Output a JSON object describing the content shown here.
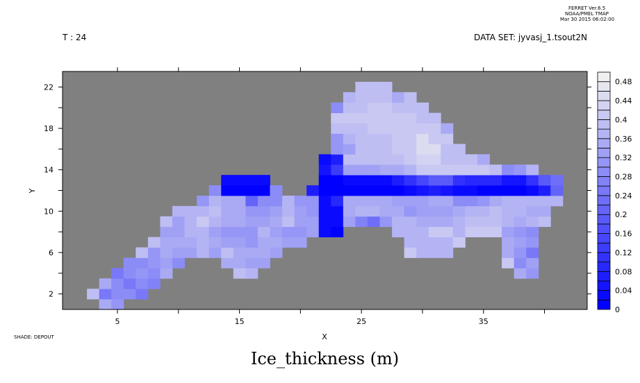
{
  "header": {
    "time_label": "T : 24",
    "dataset_label": "DATA SET: jyvasj_1.tsout2N",
    "ferret_lines": [
      "FERRET  Ver.6.5",
      "NOAA/PMEL TMAP",
      "Mar 30 2015 06:02:00"
    ]
  },
  "footer": {
    "shade_label": "SHADE: DEPOUT",
    "title": "Ice_thickness (m)"
  },
  "chart_data": {
    "type": "heatmap",
    "title": "Ice_thickness (m)",
    "xlabel": "X",
    "ylabel": "Y",
    "xlim": [
      0.5,
      43.5
    ],
    "ylim": [
      0.5,
      23.5
    ],
    "x_ticks": [
      5,
      10,
      15,
      20,
      25,
      30,
      35,
      40
    ],
    "x_tick_labels": [
      "5",
      "15",
      "25",
      "35"
    ],
    "y_ticks": [
      2,
      4,
      6,
      8,
      10,
      12,
      14,
      16,
      18,
      20,
      22
    ],
    "y_tick_labels": [
      "2",
      "6",
      "10",
      "14",
      "18",
      "22"
    ],
    "missing_color": "#808080",
    "colorbar": {
      "levels_min": 0,
      "levels_max": 0.5,
      "level_step": 0.02,
      "labels": [
        "0",
        "0.04",
        "0.08",
        "0.12",
        "0.16",
        "0.2",
        "0.24",
        "0.28",
        "0.32",
        "0.36",
        "0.4",
        "0.44",
        "0.48"
      ],
      "low_color": "#0000ff",
      "high_color": "#f0f0f0"
    },
    "rows": [
      {
        "y": 1,
        "segments": [
          {
            "x_start": 4,
            "values": [
              0.34,
              0.3
            ]
          }
        ]
      },
      {
        "y": 2,
        "segments": [
          {
            "x_start": 3,
            "values": [
              0.38,
              0.24,
              0.28,
              0.28,
              0.24
            ]
          }
        ]
      },
      {
        "y": 3,
        "segments": [
          {
            "x_start": 4,
            "values": [
              0.34,
              0.28,
              0.24,
              0.28,
              0.26
            ]
          }
        ]
      },
      {
        "y": 4,
        "segments": [
          {
            "x_start": 5,
            "values": [
              0.24,
              0.28,
              0.3,
              0.28,
              0.34
            ]
          },
          {
            "x_start": 15,
            "values": [
              0.38,
              0.36
            ]
          },
          {
            "x_start": 38,
            "values": [
              0.34,
              0.3
            ]
          }
        ]
      },
      {
        "y": 5,
        "segments": [
          {
            "x_start": 6,
            "values": [
              0.28,
              0.28,
              0.3,
              0.32,
              0.28
            ]
          },
          {
            "x_start": 14,
            "values": [
              0.34,
              0.34,
              0.32,
              0.32
            ]
          },
          {
            "x_start": 37,
            "values": [
              0.4,
              0.28,
              0.32
            ]
          }
        ]
      },
      {
        "y": 6,
        "segments": [
          {
            "x_start": 7,
            "values": [
              0.38,
              0.3,
              0.34,
              0.32,
              0.32,
              0.36,
              0.32,
              0.38,
              0.34,
              0.34,
              0.34,
              0.32
            ]
          },
          {
            "x_start": 29,
            "values": [
              0.4,
              0.36,
              0.36,
              0.36
            ]
          },
          {
            "x_start": 37,
            "values": [
              0.34,
              0.3,
              0.24
            ]
          }
        ]
      },
      {
        "y": 7,
        "segments": [
          {
            "x_start": 8,
            "values": [
              0.38,
              0.34,
              0.34,
              0.34,
              0.36,
              0.34,
              0.32,
              0.32,
              0.3,
              0.34,
              0.34,
              0.32,
              0.32
            ]
          },
          {
            "x_start": 29,
            "values": [
              0.36,
              0.36,
              0.36,
              0.36,
              0.4
            ]
          },
          {
            "x_start": 37,
            "values": [
              0.34,
              0.32,
              0.3
            ]
          }
        ]
      },
      {
        "y": 8,
        "segments": [
          {
            "x_start": 9,
            "values": [
              0.32,
              0.32,
              0.36,
              0.36,
              0.32,
              0.3,
              0.3,
              0.3,
              0.36,
              0.32,
              0.3,
              0.3,
              0.32,
              0.02,
              0
            ]
          },
          {
            "x_start": 28,
            "values": [
              0.36,
              0.36,
              0.36,
              0.4,
              0.4,
              0.36,
              0.4,
              0.4,
              0.4,
              0.32,
              0.3,
              0.28
            ]
          }
        ]
      },
      {
        "y": 9,
        "segments": [
          {
            "x_start": 9,
            "values": [
              0.38,
              0.32,
              0.36,
              0.4,
              0.36,
              0.34,
              0.34,
              0.32,
              0.32,
              0.34,
              0.38,
              0.32,
              0.32,
              0.02,
              0.02,
              0.32,
              0.26,
              0.22,
              0.3,
              0.36,
              0.36,
              0.34,
              0.34,
              0.34,
              0.36,
              0.38,
              0.38,
              0.38,
              0.36,
              0.34,
              0.36,
              0.38
            ]
          }
        ]
      },
      {
        "y": 10,
        "segments": [
          {
            "x_start": 10,
            "values": [
              0.36,
              0.36,
              0.36,
              0.38,
              0.34,
              0.34,
              0.3,
              0.3,
              0.32,
              0.36,
              0.32,
              0.3,
              0.02,
              0.02,
              0.34,
              0.36,
              0.36,
              0.34,
              0.34,
              0.3,
              0.32,
              0.32,
              0.32,
              0.34,
              0.36,
              0.36,
              0.38,
              0.36,
              0.36,
              0.34,
              0.34
            ]
          }
        ]
      },
      {
        "y": 11,
        "segments": [
          {
            "x_start": 12,
            "values": [
              0.3,
              0.36,
              0.34,
              0.34,
              0.2,
              0.28,
              0.28,
              0.36,
              0.3,
              0.3,
              0.02,
              0.08,
              0.34,
              0.34,
              0.34,
              0.34,
              0.32,
              0.32,
              0.32,
              0.34,
              0.34,
              0.28,
              0.28,
              0.3,
              0.34,
              0.36,
              0.36,
              0.36,
              0.36,
              0.36
            ]
          }
        ]
      },
      {
        "y": 12,
        "segments": [
          {
            "x_start": 13,
            "values": [
              0.28,
              0,
              0,
              0,
              0,
              0.28
            ]
          },
          {
            "x_start": 21,
            "values": [
              0.06,
              0,
              0,
              0,
              0,
              0,
              0,
              0,
              0.02,
              0.04,
              0.06,
              0.04,
              0.02,
              0.02,
              0,
              0,
              0,
              0,
              0.02,
              0.06,
              0.2
            ]
          }
        ]
      },
      {
        "y": 13,
        "segments": [
          {
            "x_start": 14,
            "values": [
              0.02,
              0.02,
              0.02,
              0.02
            ]
          },
          {
            "x_start": 22,
            "values": [
              0,
              0,
              0.02,
              0.02,
              0.02,
              0.02,
              0.06,
              0.1,
              0.14,
              0.18,
              0.18,
              0.1,
              0.08,
              0.08,
              0.08,
              0.04,
              0.04,
              0.1,
              0.18,
              0.22
            ]
          }
        ]
      },
      {
        "y": 14,
        "segments": [
          {
            "x_start": 22,
            "values": [
              0.04,
              0.12,
              0.32,
              0.32,
              0.32,
              0.34,
              0.34,
              0.36,
              0.4,
              0.4,
              0.4,
              0.4,
              0.4,
              0.4,
              0.38,
              0.28,
              0.3,
              0.36
            ]
          }
        ]
      },
      {
        "y": 15,
        "segments": [
          {
            "x_start": 22,
            "values": [
              0.02,
              0.06,
              0.38,
              0.38,
              0.38,
              0.38,
              0.38,
              0.4,
              0.42,
              0.42,
              0.38,
              0.38,
              0.38,
              0.34
            ]
          }
        ]
      },
      {
        "y": 16,
        "segments": [
          {
            "x_start": 23,
            "values": [
              0.3,
              0.32,
              0.38,
              0.38,
              0.38,
              0.4,
              0.4,
              0.44,
              0.44,
              0.38,
              0.38
            ]
          }
        ]
      },
      {
        "y": 17,
        "segments": [
          {
            "x_start": 23,
            "values": [
              0.3,
              0.36,
              0.38,
              0.38,
              0.38,
              0.4,
              0.4,
              0.44,
              0.4,
              0.4
            ]
          }
        ]
      },
      {
        "y": 18,
        "segments": [
          {
            "x_start": 23,
            "values": [
              0.38,
              0.38,
              0.38,
              0.4,
              0.4,
              0.4,
              0.4,
              0.4,
              0.4,
              0.34
            ]
          }
        ]
      },
      {
        "y": 19,
        "segments": [
          {
            "x_start": 23,
            "values": [
              0.4,
              0.4,
              0.4,
              0.4,
              0.4,
              0.4,
              0.4,
              0.38,
              0.38
            ]
          }
        ]
      },
      {
        "y": 20,
        "segments": [
          {
            "x_start": 23,
            "values": [
              0.28,
              0.38,
              0.38,
              0.4,
              0.4,
              0.38,
              0.38,
              0.38
            ]
          }
        ]
      },
      {
        "y": 21,
        "segments": [
          {
            "x_start": 24,
            "values": [
              0.36,
              0.38,
              0.38,
              0.38,
              0.34,
              0.38
            ]
          }
        ]
      },
      {
        "y": 22,
        "segments": [
          {
            "x_start": 25,
            "values": [
              0.38,
              0.38,
              0.38
            ]
          }
        ]
      }
    ]
  }
}
